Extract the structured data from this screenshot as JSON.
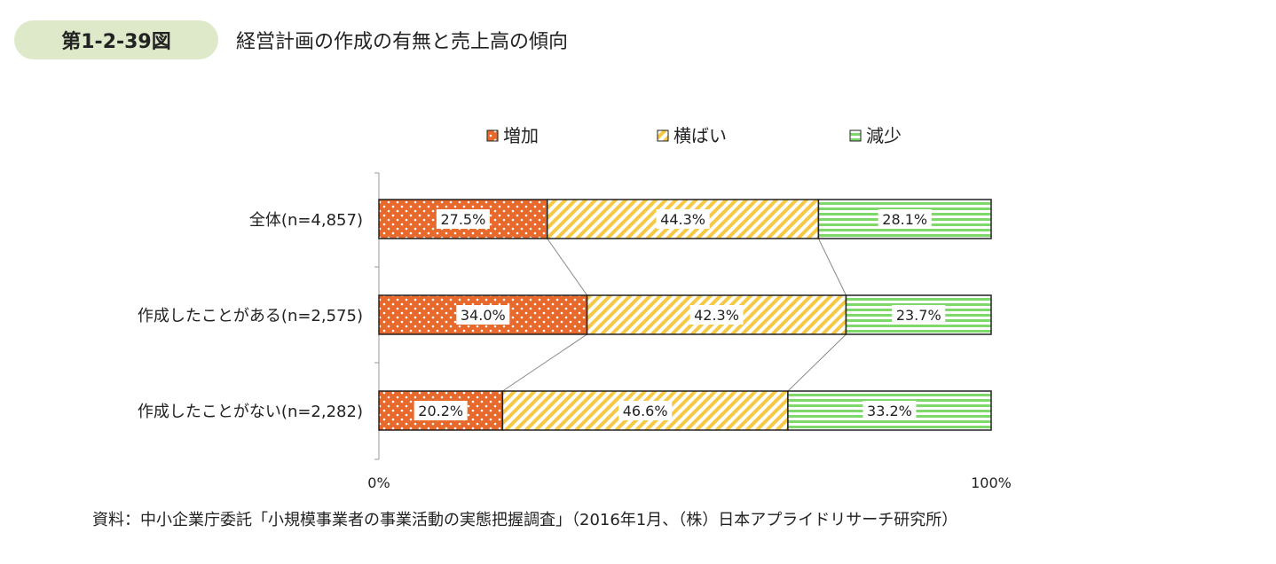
{
  "header": {
    "figure_number": "第1-2-39図",
    "title": "経営計画の作成の有無と売上高の傾向"
  },
  "source_note": "資料：中小企業庁委託「小規模事業者の事業活動の実態把握調査」（2016年1月、（株）日本アプライドリサーチ研究所）",
  "chart_data": {
    "type": "bar",
    "stacked": "100%",
    "orientation": "horizontal",
    "categories": [
      "全体(n=4,857)",
      "作成したことがある(n=2,575)",
      "作成したことがない(n=2,282)"
    ],
    "series": [
      {
        "name": "増加",
        "values": [
          27.5,
          34.0,
          20.2
        ],
        "labels": [
          "27.5%",
          "34.0%",
          "20.2%"
        ],
        "color": "#e8692c",
        "pattern": "dots"
      },
      {
        "name": "横ばい",
        "values": [
          44.3,
          42.3,
          46.6
        ],
        "labels": [
          "44.3%",
          "42.3%",
          "46.6%"
        ],
        "color": "#f6c844",
        "pattern": "diagonal-stripes"
      },
      {
        "name": "減少",
        "values": [
          28.1,
          23.7,
          33.2
        ],
        "labels": [
          "28.1%",
          "23.7%",
          "33.2%"
        ],
        "color": "#7fd86a",
        "pattern": "horizontal-stripes"
      }
    ],
    "x_ticks": [
      "0%",
      "100%"
    ],
    "xlim": [
      0,
      100
    ],
    "legend_position": "top",
    "series_connector_lines": true
  }
}
